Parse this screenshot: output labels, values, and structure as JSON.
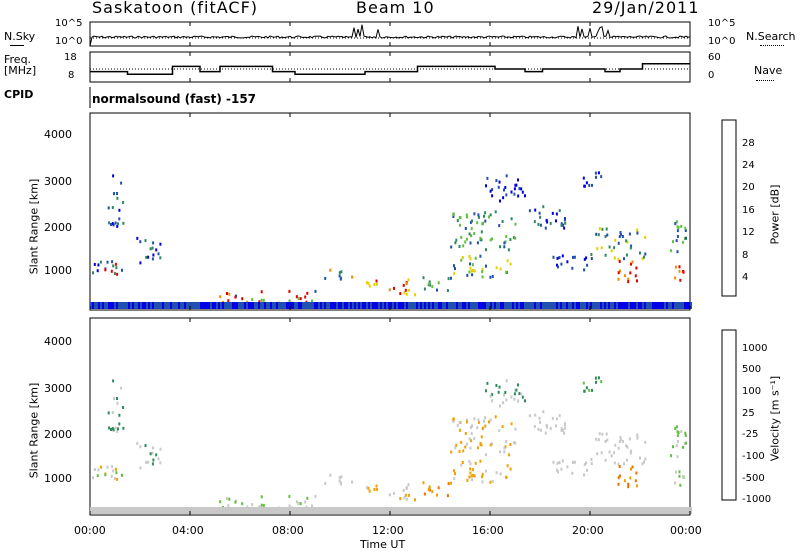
{
  "header": {
    "station": "Saskatoon (fitACF)",
    "beam": "Beam 10",
    "date": "29/Jan/2011"
  },
  "strip_labels": {
    "nsky": "N.Sky",
    "nsearch": "N.Search",
    "freq_top": "Freq.",
    "freq_unit": "[MHz]",
    "nave": "Nave",
    "cpid": "CPID",
    "cpid_value": "normalsound (fast) -157"
  },
  "chart_data": [
    {
      "type": "line",
      "name_panel": "noise",
      "left_ticks": [
        "10^5",
        "10^0"
      ],
      "right_ticks": [
        "10^5",
        "10^0"
      ],
      "series": [
        {
          "name": "N.Sky",
          "style": "solid"
        },
        {
          "name": "N.Search",
          "style": "dotted"
        }
      ]
    },
    {
      "type": "line",
      "name_panel": "frequency",
      "left_ticks": [
        "18",
        "8"
      ],
      "right_ticks": [
        "60",
        "0"
      ],
      "x": [
        0,
        1.5,
        3.3,
        4.4,
        5.2,
        7.3,
        8.2,
        10,
        11,
        13.1,
        16.2,
        17.4,
        18.1,
        19.5,
        20.6,
        21.2,
        22.1,
        24
      ],
      "series": [
        {
          "name": "Freq.",
          "values": [
            12,
            11,
            14,
            12,
            14,
            12,
            11,
            11,
            12,
            14,
            13,
            12,
            13,
            13,
            12,
            13,
            15,
            15
          ]
        },
        {
          "name": "Nave",
          "values": [
            20,
            20,
            20,
            20,
            20,
            20,
            20,
            20,
            20,
            20,
            20,
            20,
            20,
            20,
            20,
            20,
            20,
            20
          ]
        }
      ]
    },
    {
      "type": "heatmap",
      "name_panel": "power",
      "ylabel": "Slant Range [km]",
      "ylim": [
        180,
        4600
      ],
      "yticks": [
        "4000",
        "3000",
        "2000",
        "1000"
      ],
      "colorbar_label": "Power [dB]",
      "colorbar_ticks": [
        "28",
        "24",
        "20",
        "16",
        "12",
        "8",
        "4"
      ],
      "colors": [
        "#0000e6",
        "#2050b0",
        "#2f8a5a",
        "#60c040",
        "#e6d000",
        "#f08a00",
        "#e60000"
      ]
    },
    {
      "type": "heatmap",
      "name_panel": "velocity",
      "ylabel": "Slant Range [km]",
      "ylim": [
        180,
        4600
      ],
      "yticks": [
        "4000",
        "3000",
        "2000",
        "1000"
      ],
      "xlabel": "Time UT",
      "xticks": [
        "00:00",
        "04:00",
        "08:00",
        "12:00",
        "16:00",
        "20:00",
        "00:00"
      ],
      "colorbar_label": "Velocity [m s⁻¹]",
      "colorbar_ticks": [
        "1000",
        "500",
        "100",
        "25",
        "-25",
        "-100",
        "-500",
        "-1000"
      ],
      "colors": [
        "#1030b0",
        "#2f6ab0",
        "#2f8a5a",
        "#60c040",
        "#c8c8c8",
        "#f0a000",
        "#f07000",
        "#e60000"
      ]
    }
  ]
}
